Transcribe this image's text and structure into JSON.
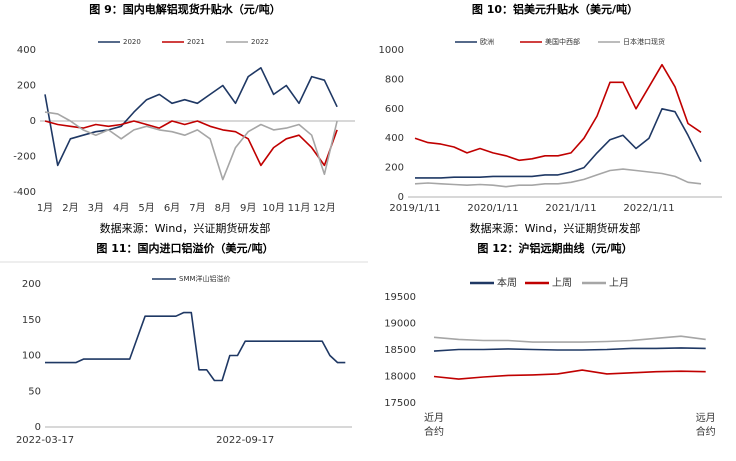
{
  "chart_data": [
    {
      "type": "line",
      "title": "图 9：国内电解铝现货升贴水（元/吨）",
      "categories": [
        "1月",
        null,
        "2月",
        null,
        "3月",
        null,
        "4月",
        null,
        "5月",
        null,
        "6月",
        null,
        "7月",
        null,
        "8月",
        null,
        "9月",
        null,
        "10月",
        null,
        "11月",
        null,
        "12月",
        null
      ],
      "series": [
        {
          "name": "2020",
          "color": "#1f3864",
          "values": [
            150,
            -250,
            -100,
            -80,
            -60,
            -50,
            -30,
            50,
            120,
            150,
            100,
            120,
            100,
            150,
            200,
            100,
            250,
            300,
            150,
            200,
            100,
            250,
            230,
            80
          ]
        },
        {
          "name": "2021",
          "color": "#c00000",
          "values": [
            0,
            -20,
            -30,
            -40,
            -20,
            -30,
            -20,
            0,
            -20,
            -40,
            0,
            -20,
            0,
            -30,
            -50,
            -60,
            -100,
            -250,
            -150,
            -100,
            -80,
            -150,
            -250,
            -50
          ]
        },
        {
          "name": "2022",
          "color": "#a6a6a6",
          "values": [
            50,
            40,
            0,
            -50,
            -80,
            -50,
            -100,
            -50,
            -30,
            -50,
            -60,
            -80,
            -50,
            -100,
            -330,
            -150,
            -60,
            -20,
            -50,
            -40,
            -20,
            -80,
            -300,
            0
          ]
        }
      ],
      "ylim": [
        -400,
        400
      ],
      "yticks": [
        -400,
        -200,
        0,
        200,
        400
      ],
      "legend": "top",
      "source": "数据来源：Wind，兴证期货研发部"
    },
    {
      "type": "line",
      "title": "图 10：铝美元升贴水（美元/吨）",
      "categories": [
        "2019/1/11",
        null,
        null,
        null,
        null,
        null,
        "2020/1/11",
        null,
        null,
        null,
        null,
        null,
        "2021/1/11",
        null,
        null,
        null,
        null,
        null,
        "2022/1/11",
        null,
        null,
        null,
        null
      ],
      "series": [
        {
          "name": "欧洲",
          "color": "#1f3864",
          "values": [
            130,
            130,
            130,
            135,
            135,
            135,
            140,
            140,
            140,
            140,
            150,
            150,
            170,
            200,
            300,
            390,
            420,
            330,
            400,
            600,
            580,
            420,
            240
          ]
        },
        {
          "name": "美国中西部",
          "color": "#c00000",
          "values": [
            400,
            370,
            360,
            340,
            300,
            330,
            300,
            280,
            250,
            260,
            280,
            280,
            300,
            400,
            550,
            780,
            780,
            600,
            750,
            900,
            750,
            500,
            440
          ]
        },
        {
          "name": "日本港口现货",
          "color": "#a6a6a6",
          "values": [
            90,
            95,
            90,
            85,
            80,
            85,
            80,
            70,
            80,
            80,
            90,
            90,
            100,
            120,
            150,
            180,
            190,
            180,
            170,
            160,
            140,
            100,
            90
          ]
        }
      ],
      "ylim": [
        0,
        1000
      ],
      "yticks": [
        0,
        200,
        400,
        600,
        800,
        1000
      ],
      "legend": "top",
      "source": "数据来源：Wind，兴证期货研发部"
    },
    {
      "type": "line",
      "title": "图 11：国内进口铝溢价（美元/吨）",
      "categories": [
        "2022-03-17",
        null,
        null,
        null,
        null,
        null,
        null,
        null,
        null,
        null,
        null,
        null,
        null,
        null,
        null,
        null,
        null,
        null,
        null,
        null,
        null,
        null,
        null,
        null,
        null,
        null,
        "2022-09-17",
        null,
        null,
        null,
        null,
        null,
        null,
        null,
        null,
        null,
        null,
        null,
        null,
        null
      ],
      "series": [
        {
          "name": "SMM洋山铝溢价",
          "color": "#1f3864",
          "values": [
            90,
            90,
            90,
            90,
            90,
            95,
            95,
            95,
            95,
            95,
            95,
            95,
            125,
            155,
            155,
            155,
            155,
            155,
            160,
            160,
            80,
            80,
            65,
            65,
            100,
            100,
            120,
            120,
            120,
            120,
            120,
            120,
            120,
            120,
            120,
            120,
            120,
            100,
            90,
            90
          ]
        }
      ],
      "ylim": [
        0,
        200
      ],
      "yticks": [
        0,
        50,
        100,
        150,
        200
      ],
      "legend": "top"
    },
    {
      "type": "line",
      "title": "图 12：沪铝远期曲线（元/吨）",
      "categories": [
        "近月\n合约",
        null,
        null,
        null,
        null,
        null,
        null,
        null,
        null,
        null,
        null,
        "远月\n合约"
      ],
      "series": [
        {
          "name": "本周",
          "color": "#1f3864",
          "values": [
            18480,
            18510,
            18510,
            18520,
            18510,
            18500,
            18500,
            18510,
            18530,
            18530,
            18540,
            18530
          ]
        },
        {
          "name": "上周",
          "color": "#c00000",
          "values": [
            18000,
            17950,
            17990,
            18020,
            18030,
            18050,
            18120,
            18050,
            18070,
            18090,
            18100,
            18090
          ]
        },
        {
          "name": "上月",
          "color": "#a6a6a6",
          "values": [
            18740,
            18700,
            18680,
            18680,
            18650,
            18650,
            18650,
            18660,
            18680,
            18720,
            18760,
            18700
          ]
        }
      ],
      "ylim": [
        17500,
        19500
      ],
      "yticks": [
        17500,
        18000,
        18500,
        19000,
        19500
      ],
      "legend": "top"
    }
  ]
}
